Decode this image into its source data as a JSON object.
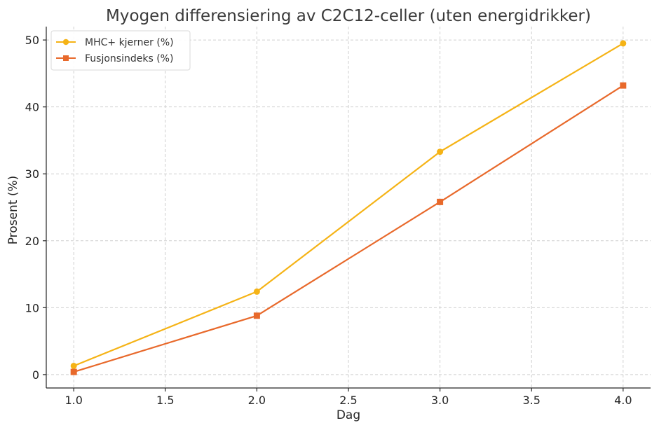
{
  "chart_data": {
    "type": "line",
    "title": "Myogen differensiering av C2C12-celler (uten energidrikker)",
    "xlabel": "Dag",
    "ylabel": "Prosent (%)",
    "xlim": [
      0.85,
      4.15
    ],
    "ylim": [
      -2,
      52
    ],
    "xticks": [
      1.0,
      1.5,
      2.0,
      2.5,
      3.0,
      3.5,
      4.0
    ],
    "xtick_labels": [
      "1.0",
      "1.5",
      "2.0",
      "2.5",
      "3.0",
      "3.5",
      "4.0"
    ],
    "yticks": [
      0,
      10,
      20,
      30,
      40,
      50
    ],
    "ytick_labels": [
      "0",
      "10",
      "20",
      "30",
      "40",
      "50"
    ],
    "grid": true,
    "legend_position": "top-left",
    "x": [
      1.0,
      2.0,
      3.0,
      4.0
    ],
    "series": [
      {
        "name": "MHC+ kjerner (%)",
        "values": [
          1.3,
          12.4,
          33.3,
          49.5
        ],
        "color": "#f5b316",
        "marker": "circle"
      },
      {
        "name": "Fusjonsindeks (%)",
        "values": [
          0.4,
          8.8,
          25.8,
          43.2
        ],
        "color": "#e8692b",
        "marker": "square"
      }
    ]
  }
}
